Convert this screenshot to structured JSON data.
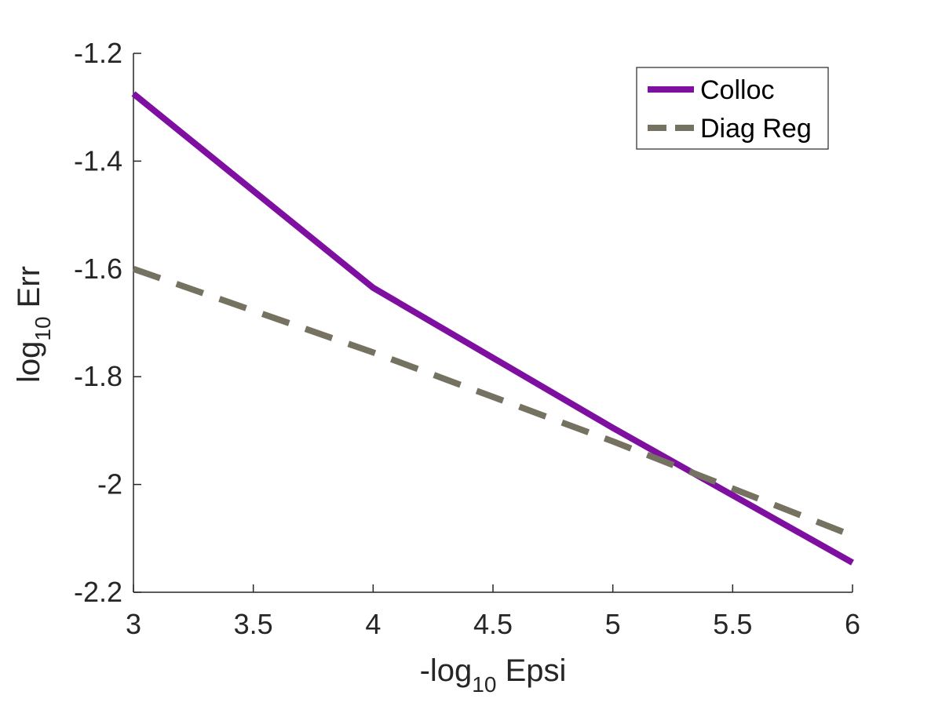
{
  "chart_data": {
    "type": "line",
    "title": "",
    "xlabel": {
      "prefix": "-log",
      "sub": "10",
      "suffix": " Epsi"
    },
    "ylabel": {
      "prefix": "log",
      "sub": "10",
      "suffix": " Err"
    },
    "xlim": [
      3,
      6
    ],
    "ylim": [
      -2.2,
      -1.2
    ],
    "xticks": [
      3,
      3.5,
      4,
      4.5,
      5,
      5.5,
      6
    ],
    "xtick_labels": [
      "3",
      "3.5",
      "4",
      "4.5",
      "5",
      "5.5",
      "6"
    ],
    "yticks": [
      -1.2,
      -1.4,
      -1.6,
      -1.8,
      -2,
      -2.2
    ],
    "ytick_labels": [
      "-1.2",
      "-1.4",
      "-1.6",
      "-1.8",
      "-2",
      "-2.2"
    ],
    "grid": false,
    "legend_position": "top-right",
    "series": [
      {
        "name": "Colloc",
        "style": "solid",
        "color": "#7E0FA0",
        "x": [
          3,
          4,
          5,
          6
        ],
        "y": [
          -1.275,
          -1.635,
          -1.895,
          -2.145
        ]
      },
      {
        "name": "Diag Reg",
        "style": "dashed",
        "color": "#767262",
        "x": [
          3,
          4,
          5,
          6
        ],
        "y": [
          -1.6,
          -1.755,
          -1.92,
          -2.095
        ]
      }
    ]
  }
}
